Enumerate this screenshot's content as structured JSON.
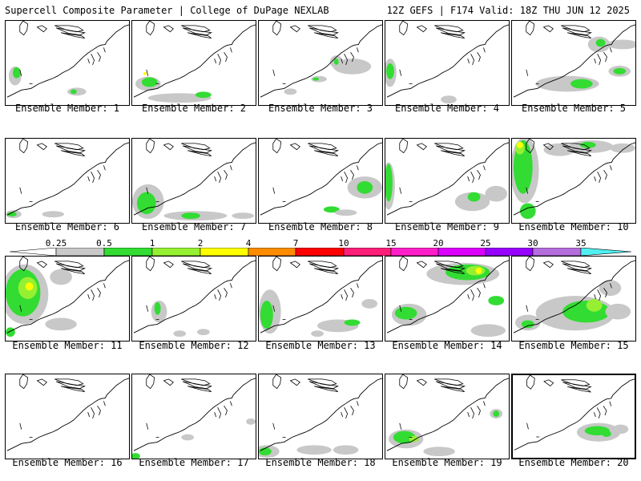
{
  "header": {
    "title": "Supercell Composite Parameter | College of DuPage NEXLAB",
    "run_info": "12Z GEFS | F174 Valid: 18Z THU JUN 12 2025"
  },
  "member_label_prefix": "Ensemble Member: ",
  "members": [
    {
      "id": 1,
      "label": "Ensemble Member: 1"
    },
    {
      "id": 2,
      "label": "Ensemble Member: 2"
    },
    {
      "id": 3,
      "label": "Ensemble Member: 3"
    },
    {
      "id": 4,
      "label": "Ensemble Member: 4"
    },
    {
      "id": 5,
      "label": "Ensemble Member: 5"
    },
    {
      "id": 6,
      "label": "Ensemble Member: 6"
    },
    {
      "id": 7,
      "label": "Ensemble Member: 7"
    },
    {
      "id": 8,
      "label": "Ensemble Member: 8"
    },
    {
      "id": 9,
      "label": "Ensemble Member: 9"
    },
    {
      "id": 10,
      "label": "Ensemble Member: 10"
    },
    {
      "id": 11,
      "label": "Ensemble Member: 11"
    },
    {
      "id": 12,
      "label": "Ensemble Member: 12"
    },
    {
      "id": 13,
      "label": "Ensemble Member: 13"
    },
    {
      "id": 14,
      "label": "Ensemble Member: 14"
    },
    {
      "id": 15,
      "label": "Ensemble Member: 15"
    },
    {
      "id": 16,
      "label": "Ensemble Member: 16"
    },
    {
      "id": 17,
      "label": "Ensemble Member: 17"
    },
    {
      "id": 18,
      "label": "Ensemble Member: 18"
    },
    {
      "id": 19,
      "label": "Ensemble Member: 19"
    },
    {
      "id": 20,
      "label": "Ensemble Member: 20"
    }
  ],
  "selected_member": 20,
  "colorbar": {
    "labels": [
      "0.25",
      "0.5",
      "1",
      "2",
      "4",
      "7",
      "10",
      "15",
      "20",
      "25",
      "30",
      "35"
    ],
    "colors": [
      "#c8c8c8",
      "#32dc32",
      "#96f032",
      "#ffff00",
      "#ff8c00",
      "#ff0000",
      "#ff1e78",
      "#ff1ec8",
      "#dc00ff",
      "#9600ff",
      "#b46edc",
      "#50f0f0"
    ]
  }
}
